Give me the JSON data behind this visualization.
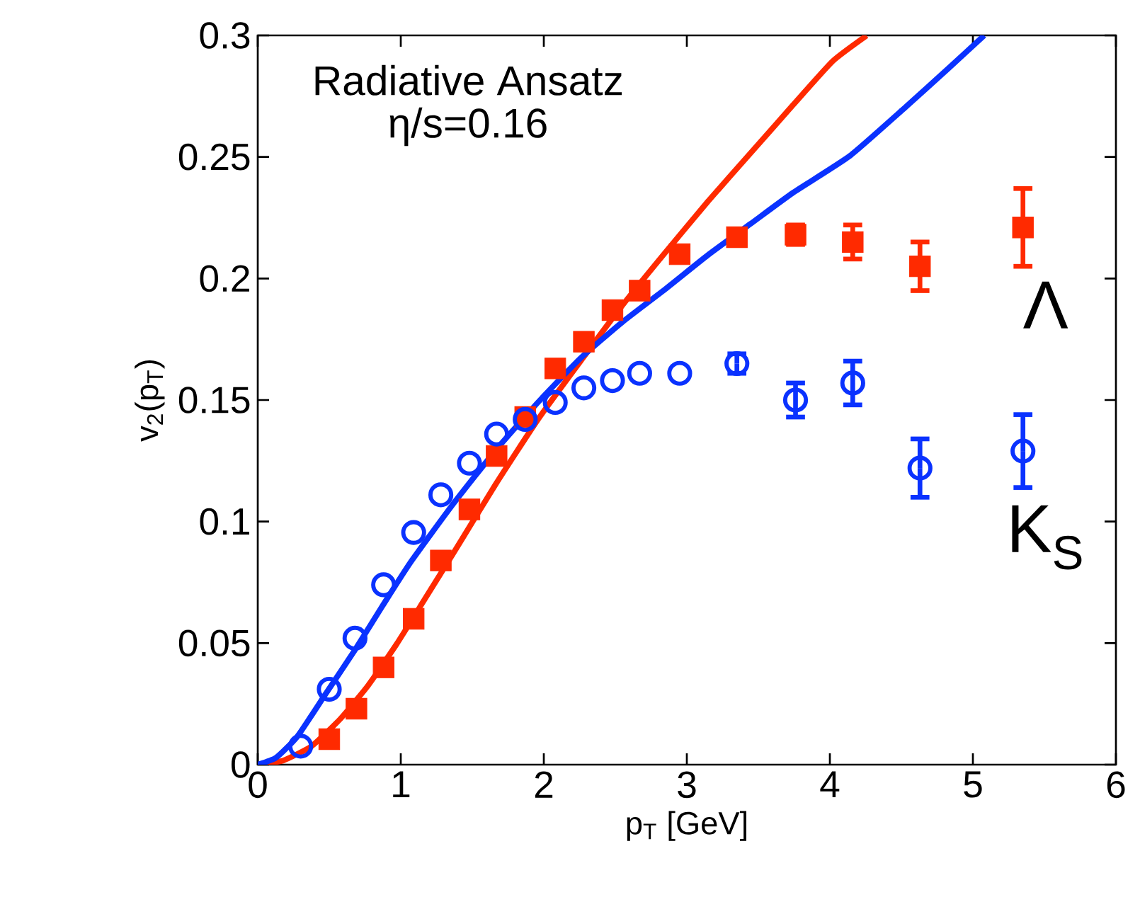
{
  "chart_data": {
    "type": "scatter",
    "xlabel": "p$_{T}$ [GeV]",
    "ylabel": "v$_{2}$(p$_{T}$)",
    "xlim": [
      0,
      6
    ],
    "ylim": [
      0,
      0.3
    ],
    "xticks": [
      0,
      1,
      2,
      3,
      4,
      5,
      6
    ],
    "yticks": [
      0,
      0.05,
      0.1,
      0.15,
      0.2,
      0.25,
      0.3
    ],
    "grid": false,
    "annotations": [
      "Radiative Ansatz",
      "η/s=0.16"
    ],
    "series": [
      {
        "type": "line",
        "color": "#ff2a00",
        "marker": "none",
        "line_style": "solid",
        "x": [
          0,
          0.178,
          0.376,
          0.574,
          0.772,
          0.97,
          1.168,
          1.366,
          1.663,
          1.96,
          2.257,
          2.554,
          2.851,
          3.149,
          3.446,
          3.743,
          4.02,
          4.257
        ],
        "values": [
          0,
          0.0017,
          0.0076,
          0.0186,
          0.0326,
          0.0495,
          0.0681,
          0.0868,
          0.1153,
          0.1421,
          0.166,
          0.1893,
          0.2108,
          0.2318,
          0.2516,
          0.2714,
          0.2894,
          0.2999
        ]
      },
      {
        "type": "line",
        "color": "#0a32ff",
        "marker": "none",
        "line_style": "solid",
        "x": [
          0,
          0.129,
          0.277,
          0.475,
          0.673,
          0.871,
          1.069,
          1.366,
          1.663,
          1.96,
          2.257,
          2.554,
          2.851,
          3.149,
          3.446,
          3.743,
          4.139,
          4.535,
          4.832,
          5.079
        ],
        "values": [
          0,
          0.0029,
          0.0116,
          0.0291,
          0.0466,
          0.0652,
          0.0833,
          0.1072,
          0.1293,
          0.1491,
          0.1672,
          0.1823,
          0.1957,
          0.2097,
          0.2225,
          0.2353,
          0.2504,
          0.2708,
          0.2866,
          0.3
        ]
      },
      {
        "name": "Λ",
        "color": "#ff2a00",
        "marker": "square",
        "x": [
          0.5,
          0.69,
          0.88,
          1.09,
          1.28,
          1.48,
          1.67,
          1.87,
          2.08,
          2.28,
          2.48,
          2.67,
          2.95,
          3.35,
          3.76,
          4.16,
          4.63,
          5.35
        ],
        "values": [
          0.0105,
          0.023,
          0.04,
          0.06,
          0.084,
          0.105,
          0.127,
          0.143,
          0.163,
          0.174,
          0.187,
          0.195,
          0.21,
          0.217,
          0.218,
          0.215,
          0.205,
          0.221
        ],
        "errors": [
          null,
          null,
          null,
          null,
          null,
          null,
          null,
          null,
          null,
          null,
          null,
          null,
          null,
          null,
          0.004,
          0.007,
          0.01,
          0.016
        ]
      },
      {
        "name": "K$_{S}$",
        "color": "#0a32ff",
        "marker": "circle",
        "x": [
          0.3,
          0.5,
          0.68,
          0.88,
          1.09,
          1.28,
          1.48,
          1.67,
          1.87,
          2.08,
          2.28,
          2.48,
          2.67,
          2.95,
          3.35,
          3.76,
          4.16,
          4.63,
          5.35
        ],
        "values": [
          0.0076,
          0.031,
          0.052,
          0.074,
          0.0955,
          0.111,
          0.124,
          0.136,
          0.142,
          0.149,
          0.155,
          0.158,
          0.161,
          0.161,
          0.165,
          0.15,
          0.157,
          0.122,
          0.129
        ],
        "errors": [
          null,
          null,
          null,
          null,
          null,
          null,
          null,
          null,
          null,
          null,
          null,
          null,
          null,
          null,
          0.004,
          0.007,
          0.009,
          0.012,
          0.015
        ]
      }
    ]
  }
}
